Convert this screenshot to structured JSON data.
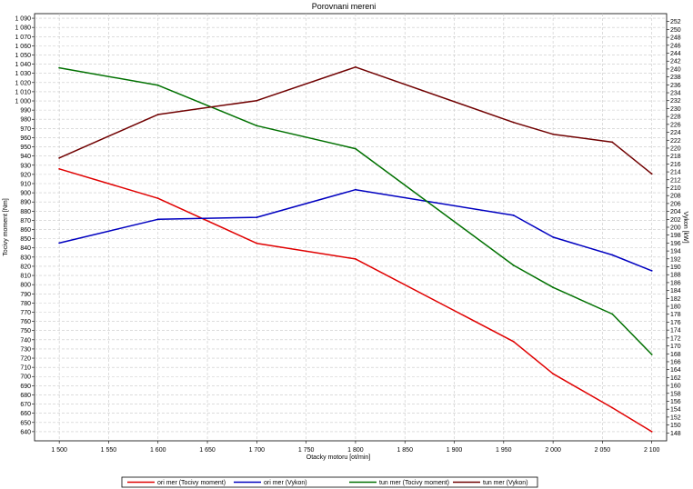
{
  "chart_data": {
    "type": "line",
    "title": "Porovnani mereni",
    "xlabel": "Otacky motoru [ot/min]",
    "ylabel_left": "Tocivy moment [Nm]",
    "ylabel_right": "Vykon [kW]",
    "xlim": [
      1475,
      2115
    ],
    "ylim_left": [
      630,
      1095
    ],
    "ylim_right": [
      146,
      254
    ],
    "x_ticks": [
      1500,
      1550,
      1600,
      1650,
      1700,
      1750,
      1800,
      1850,
      1900,
      1950,
      2000,
      2050,
      2100
    ],
    "x_tick_labels": [
      "1 500",
      "1 550",
      "1 600",
      "1 650",
      "1 700",
      "1 750",
      "1 800",
      "1 850",
      "1 900",
      "1 950",
      "2 000",
      "2 050",
      "2 100"
    ],
    "y_left_ticks": [
      640,
      650,
      660,
      670,
      680,
      690,
      700,
      710,
      720,
      730,
      740,
      750,
      760,
      770,
      780,
      790,
      800,
      810,
      820,
      830,
      840,
      850,
      860,
      870,
      880,
      890,
      900,
      910,
      920,
      930,
      940,
      950,
      960,
      970,
      980,
      990,
      1000,
      1010,
      1020,
      1030,
      1040,
      1050,
      1060,
      1070,
      1080,
      1090
    ],
    "y_left_tick_labels": [
      "640",
      "650",
      "660",
      "670",
      "680",
      "690",
      "700",
      "710",
      "720",
      "730",
      "740",
      "750",
      "760",
      "770",
      "780",
      "790",
      "800",
      "810",
      "820",
      "830",
      "840",
      "850",
      "860",
      "870",
      "880",
      "890",
      "900",
      "910",
      "920",
      "930",
      "940",
      "950",
      "960",
      "970",
      "980",
      "990",
      "1 000",
      "1 010",
      "1 020",
      "1 030",
      "1 040",
      "1 050",
      "1 060",
      "1 070",
      "1 080",
      "1 090"
    ],
    "y_right_ticks": [
      148,
      150,
      152,
      154,
      156,
      158,
      160,
      162,
      164,
      166,
      168,
      170,
      172,
      174,
      176,
      178,
      180,
      182,
      184,
      186,
      188,
      190,
      192,
      194,
      196,
      198,
      200,
      202,
      204,
      206,
      208,
      210,
      212,
      214,
      216,
      218,
      220,
      222,
      224,
      226,
      228,
      230,
      232,
      234,
      236,
      238,
      240,
      242,
      244,
      246,
      248,
      250,
      252
    ],
    "y_right_tick_labels": [
      "148",
      "150",
      "152",
      "154",
      "156",
      "158",
      "160",
      "162",
      "164",
      "166",
      "168",
      "170",
      "172",
      "174",
      "176",
      "178",
      "180",
      "182",
      "184",
      "186",
      "188",
      "190",
      "192",
      "194",
      "196",
      "198",
      "200",
      "202",
      "204",
      "206",
      "208",
      "210",
      "212",
      "214",
      "216",
      "218",
      "220",
      "222",
      "224",
      "226",
      "228",
      "230",
      "232",
      "234",
      "236",
      "238",
      "240",
      "242",
      "244",
      "246",
      "248",
      "250",
      "252"
    ],
    "grid": true,
    "legend_position": "bottom",
    "series": [
      {
        "name": "ori mer  (Tocivy moment)",
        "axis": "left",
        "color": "#e00000",
        "x": [
          1500,
          1600,
          1700,
          1800,
          1960,
          2000,
          2060,
          2100
        ],
        "values": [
          926,
          894,
          845,
          828,
          738,
          703,
          666,
          640
        ]
      },
      {
        "name": "ori mer  (Vykon)",
        "axis": "right",
        "color": "#0000c0",
        "x": [
          1500,
          1600,
          1700,
          1800,
          1960,
          2000,
          2060,
          2100
        ],
        "values": [
          196,
          202,
          202.5,
          209.5,
          203,
          197.5,
          193,
          189
        ]
      },
      {
        "name": "tun mer  (Tocivy moment)",
        "axis": "left",
        "color": "#007000",
        "x": [
          1500,
          1600,
          1700,
          1800,
          1960,
          2000,
          2060,
          2100
        ],
        "values": [
          1036,
          1017,
          973,
          948,
          821,
          797,
          768,
          724
        ]
      },
      {
        "name": "tun mer  (Vykon)",
        "axis": "right",
        "color": "#700000",
        "x": [
          1500,
          1600,
          1700,
          1800,
          1960,
          2000,
          2060,
          2100
        ],
        "values": [
          217.5,
          228.5,
          232,
          240.5,
          226.5,
          223.5,
          221.5,
          213.5
        ]
      }
    ]
  }
}
